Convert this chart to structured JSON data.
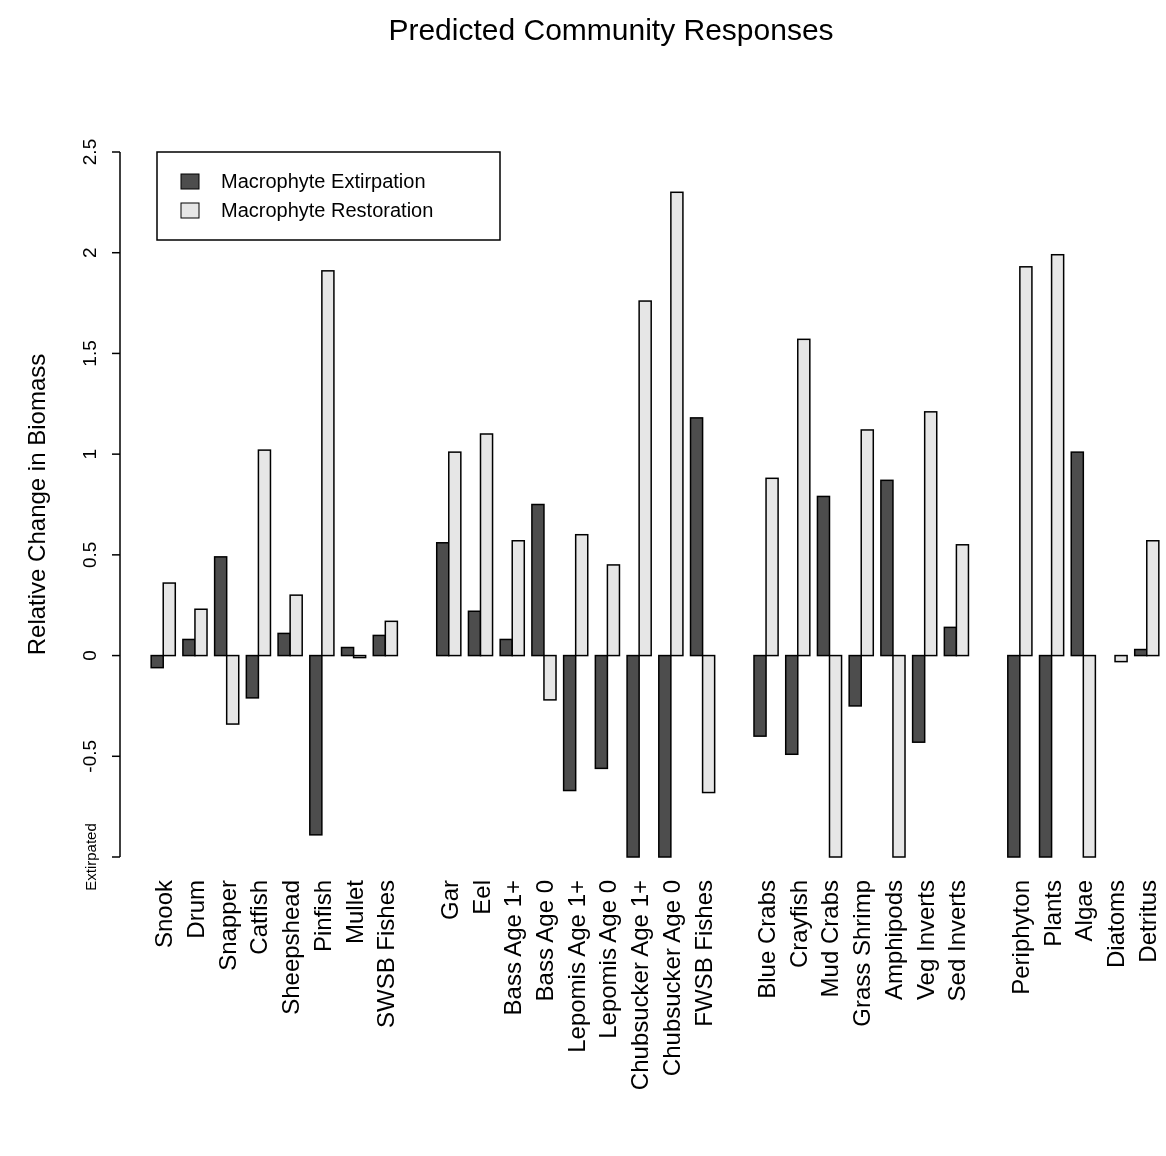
{
  "chart_data": {
    "type": "bar",
    "title": "Predicted Community Responses",
    "ylabel": "Relative Change in Biomass",
    "categories": [
      "Snook",
      "Drum",
      "Snapper",
      "Catfish",
      "Sheepshead",
      "Pinfish",
      "Mullet",
      "SWSB Fishes",
      null,
      "Gar",
      "Eel",
      "Bass Age 1+",
      "Bass Age 0",
      "Lepomis Age 1+",
      "Lepomis Age 0",
      "Chubsucker Age 1+",
      "Chubsucker Age 0",
      "FWSB Fishes",
      null,
      "Blue Crabs",
      "Crayfish",
      "Mud Crabs",
      "Grass Shrimp",
      "Amphipods",
      "Veg Inverts",
      "Sed Inverts",
      null,
      "Periphyton",
      "Plants",
      "Algae",
      "Diatoms",
      "Detritus"
    ],
    "series": [
      {
        "name": "Macrophyte Extirpation",
        "color": "#4d4d4d",
        "values": [
          -0.06,
          0.08,
          0.49,
          -0.21,
          0.11,
          -0.89,
          0.04,
          0.1,
          null,
          0.56,
          0.22,
          0.08,
          0.75,
          -0.67,
          -0.56,
          -1,
          -1,
          1.18,
          null,
          -0.4,
          -0.49,
          0.79,
          -0.25,
          0.87,
          -0.43,
          0.14,
          null,
          -1,
          -1,
          1.01,
          0,
          0.03
        ]
      },
      {
        "name": "Macrophyte Restoration",
        "color": "#e6e6e6",
        "values": [
          0.36,
          0.23,
          -0.34,
          1.02,
          0.3,
          1.91,
          -0.01,
          0.17,
          null,
          1.01,
          1.1,
          0.57,
          -0.22,
          0.6,
          0.45,
          1.76,
          2.3,
          -0.68,
          null,
          0.88,
          1.57,
          -1,
          1.12,
          -1,
          1.21,
          0.55,
          null,
          1.93,
          1.99,
          -1,
          -0.03,
          0.57
        ]
      }
    ],
    "ylim": [
      -1,
      2.5
    ],
    "yticks": [
      {
        "value": -1,
        "label": "Extirpated"
      },
      -0.5,
      0,
      0.5,
      1,
      1.5,
      2,
      2.5
    ],
    "legend": "top left",
    "grid": false
  }
}
